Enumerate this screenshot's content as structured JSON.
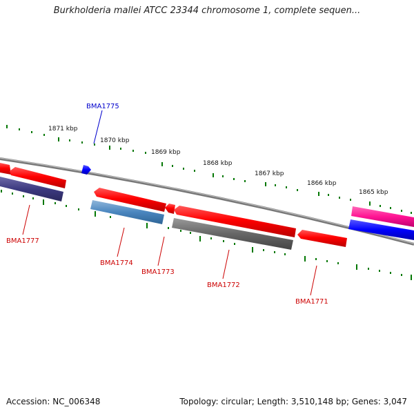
{
  "title": "Burkholderia mallei ATCC 23344 chromosome 1, complete sequen...",
  "footer": {
    "accession": "Accession: NC_006348",
    "topology": "Topology: circular; Length: 3,510,148 bp; Genes: 3,047"
  },
  "ruler": [
    {
      "label": "1871 kbp"
    },
    {
      "label": "1870 kbp"
    },
    {
      "label": "1869 kbp"
    },
    {
      "label": "1868 kbp"
    },
    {
      "label": "1867 kbp"
    },
    {
      "label": "1866 kbp"
    },
    {
      "label": "1865 kbp"
    }
  ],
  "gene_labels": [
    {
      "label": "BMA1775",
      "color": "#0000cc"
    },
    {
      "label": "BMA1777",
      "color": "#cc0000"
    },
    {
      "label": "BMA1774",
      "color": "#cc0000"
    },
    {
      "label": "BMA1773",
      "color": "#cc0000"
    },
    {
      "label": "BMA1772",
      "color": "#cc0000"
    },
    {
      "label": "BMA1771",
      "color": "#cc0000"
    }
  ],
  "colors": {
    "gene_red": "#ff0000",
    "gene_blue": "#0000ff",
    "gene_magenta": "#ff1493",
    "tick_green": "#007700",
    "backbone_gray": "#888888"
  }
}
